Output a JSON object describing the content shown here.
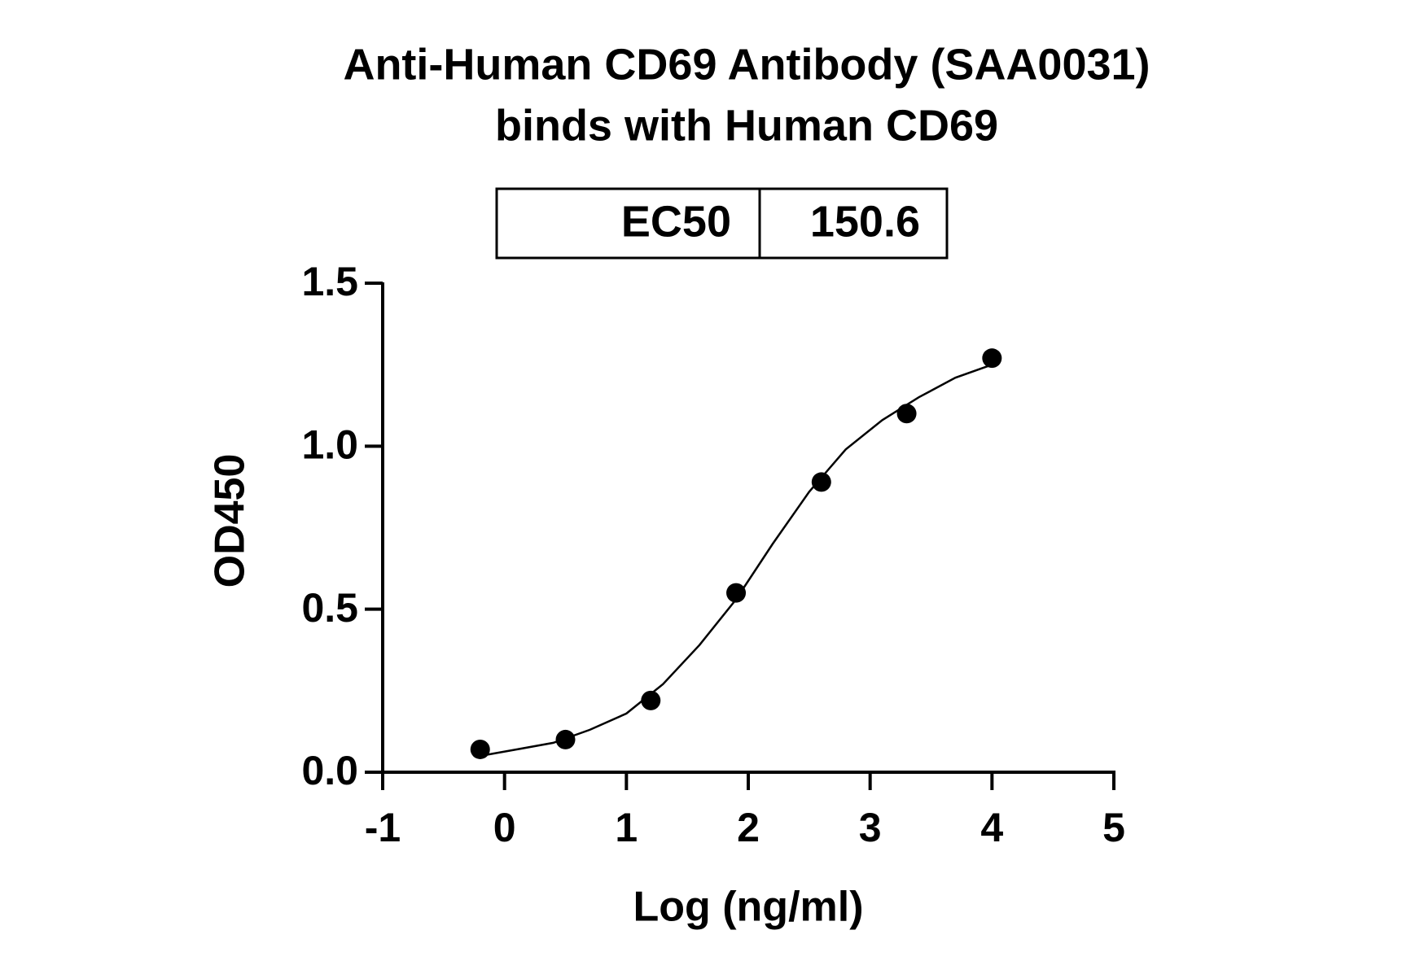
{
  "chart_data": {
    "type": "scatter",
    "title": "Anti-Human CD69 Antibody (SAA0031)",
    "subtitle": "binds with Human CD69",
    "ec50_table": {
      "label": "EC50",
      "value": 150.6
    },
    "x_label": "Log (ng/ml)",
    "y_label": "OD450",
    "series": [
      {
        "color": "#000000",
        "x": [
          -0.2,
          0.5,
          1.2,
          1.9,
          2.6,
          3.3,
          4.0
        ],
        "values": [
          0.07,
          0.1,
          0.22,
          0.55,
          0.89,
          1.1,
          1.27
        ]
      }
    ],
    "fit_curve": {
      "color": "#000000",
      "x": [
        -0.2,
        0.1,
        0.4,
        0.7,
        1.0,
        1.3,
        1.6,
        1.9,
        2.2,
        2.5,
        2.8,
        3.1,
        3.4,
        3.7,
        4.0
      ],
      "values": [
        0.05,
        0.07,
        0.09,
        0.13,
        0.18,
        0.27,
        0.39,
        0.53,
        0.7,
        0.86,
        0.99,
        1.08,
        1.15,
        1.21,
        1.25
      ]
    },
    "xlim": [
      -1,
      5
    ],
    "xticks": [
      -1,
      0,
      1,
      2,
      3,
      4,
      5
    ],
    "ylim": [
      0,
      1.5
    ],
    "yticks": [
      {
        "value": 0,
        "label": "0.0"
      },
      0.5,
      {
        "value": 1,
        "label": "1.0"
      },
      1.5
    ]
  }
}
